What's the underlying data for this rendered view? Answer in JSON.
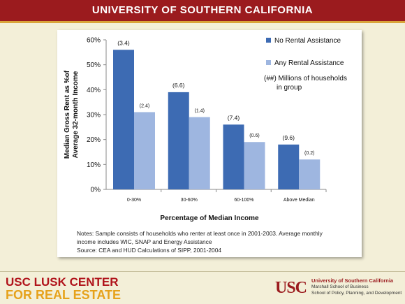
{
  "header": {
    "title": "UNIVERSITY OF SOUTHERN CALIFORNIA"
  },
  "chart_data": {
    "type": "bar",
    "ylabel": [
      "Median Gross Rent as %of",
      "Average 32-month Income"
    ],
    "xlabel": "Percentage of Median Income",
    "ylim": [
      0,
      60
    ],
    "yticks": [
      "0%",
      "10%",
      "20%",
      "30%",
      "40%",
      "50%",
      "60%"
    ],
    "categories": [
      "0-30%",
      "30-60%",
      "60-100%",
      "Above Median"
    ],
    "series": [
      {
        "name": "No Rental Assistance",
        "color": "#3d6bb3",
        "values": [
          56,
          39,
          26,
          18
        ],
        "labels": [
          "(3.4)",
          "(6.6)",
          "(7.4)",
          "(9.6)"
        ]
      },
      {
        "name": "Any Rental Assistance",
        "color": "#9eb6e0",
        "values": [
          31,
          29,
          19,
          12
        ],
        "labels": [
          "(2.4)",
          "(1.4)",
          "(0.6)",
          "(0.2)"
        ]
      }
    ],
    "annotation": [
      "(##) Millions of households",
      "in group"
    ],
    "legend_position": "top-right",
    "grid": false
  },
  "notes": {
    "line1": "Notes: Sample consists of households who renter at least once in 2001-2003.  Average monthly",
    "line2": "income includes WIC, SNAP and Energy Assistance",
    "line3": "Source:  CEA and HUD Calculations of SIPP, 2001-2004"
  },
  "footer": {
    "lusk_line1": "USC LUSK CENTER",
    "lusk_line2": "FOR REAL ESTATE",
    "usc_logo": "USC",
    "usc_name": "University of Southern California",
    "usc_school1": "Marshall School of Business",
    "usc_school2": "School of Policy, Planning, and Development"
  }
}
